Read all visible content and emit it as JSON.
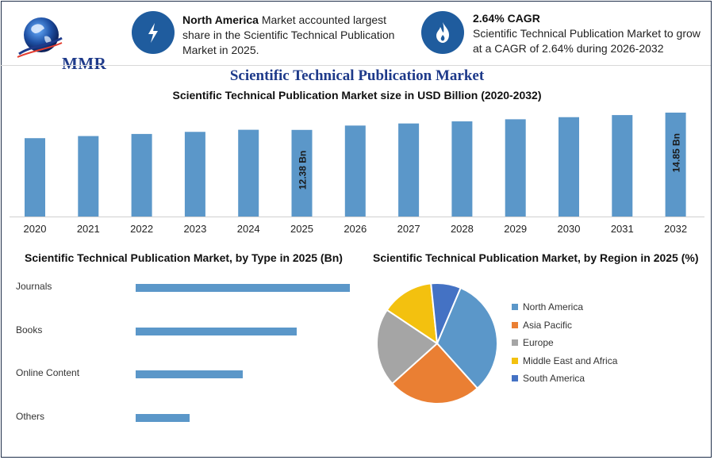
{
  "logo": {
    "text": "MMR"
  },
  "info_left": {
    "icon": "lightning-icon",
    "bold": "North America",
    "text": " Market accounted largest share in the Scientific Technical Publication Market in 2025."
  },
  "info_right": {
    "icon": "flame-icon",
    "bold": "2.64% CAGR",
    "text": "Scientific Technical Publication Market to grow at a CAGR of 2.64% during 2026-2032"
  },
  "main_title": "Scientific Technical Publication Market",
  "colors": {
    "bar": "#5b97c9",
    "brand": "#1e3a8a",
    "circle": "#1f5c9e"
  },
  "chart_data": [
    {
      "type": "bar",
      "title": "Scientific Technical Publication Market size in USD Billion (2020-2032)",
      "categories": [
        "2020",
        "2021",
        "2022",
        "2023",
        "2024",
        "2025",
        "2026",
        "2027",
        "2028",
        "2029",
        "2030",
        "2031",
        "2032"
      ],
      "values": [
        11.2,
        11.5,
        11.8,
        12.1,
        12.4,
        12.38,
        13.0,
        13.3,
        13.6,
        13.9,
        14.2,
        14.5,
        14.85
      ],
      "data_labels": {
        "2025": "12.38 Bn",
        "2032": "14.85 Bn"
      },
      "ylim": [
        0,
        14.85
      ],
      "grid": false
    },
    {
      "type": "bar",
      "orientation": "horizontal",
      "title": "Scientific Technical Publication Market, by Type in 2025 (Bn)",
      "categories": [
        "Journals",
        "Books",
        "Online Content",
        "Others"
      ],
      "values": [
        5.0,
        3.75,
        2.5,
        1.25
      ],
      "grid": false
    },
    {
      "type": "pie",
      "title": "Scientific Technical Publication Market, by Region in 2025 (%)",
      "categories": [
        "North America",
        "Asia Pacific",
        "Europe",
        "Middle East and Africa",
        "South America"
      ],
      "values": [
        32,
        25,
        21,
        14,
        8
      ],
      "colors": [
        "#5b97c9",
        "#ea7f33",
        "#a5a5a5",
        "#f3c10f",
        "#4472c4"
      ],
      "legend": "right"
    }
  ]
}
